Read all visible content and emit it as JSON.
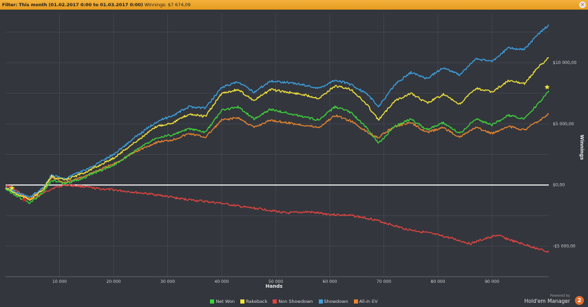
{
  "filter_bar": {
    "label": "Filter:",
    "range": "This month (01.02.2017 0:00 to 01.03.2017 0:00)",
    "winnings": "Winnings: $7 674,09",
    "close_icon": "close-icon"
  },
  "chart_data": {
    "type": "line",
    "title": "",
    "xlabel": "Hands",
    "ylabel": "Winnings",
    "xlim": [
      0,
      100500
    ],
    "ylim": [
      -7500,
      14000
    ],
    "x_ticks": [
      10000,
      20000,
      30000,
      40000,
      50000,
      60000,
      70000,
      80000,
      90000
    ],
    "x_tick_labels": [
      "10 000",
      "20 000",
      "30 000",
      "40 000",
      "50 000",
      "60 000",
      "70 000",
      "80 000",
      "90 000"
    ],
    "y_ticks": [
      -5000,
      0,
      5000,
      10000
    ],
    "y_tick_labels": [
      "-$5 000,00",
      "$0,00",
      "$5 000,00",
      "$10 000,00"
    ],
    "zero_line": true,
    "grid": true,
    "legend_position": "bottom",
    "series": [
      {
        "name": "Net Won",
        "color": "#3fd23a",
        "x": [
          0,
          2500,
          4500,
          7000,
          8500,
          11000,
          14000,
          16000,
          20000,
          24000,
          28000,
          31000,
          34000,
          37000,
          40000,
          43000,
          46000,
          49000,
          52000,
          55000,
          58000,
          61000,
          64000,
          67000,
          69000,
          72000,
          75000,
          78000,
          81000,
          84000,
          87000,
          90000,
          93000,
          96000,
          98500,
          100500
        ],
        "y": [
          -300,
          -1000,
          -1500,
          -600,
          400,
          100,
          500,
          900,
          1600,
          2800,
          3900,
          4100,
          4600,
          4300,
          6100,
          6400,
          5400,
          6200,
          5900,
          5600,
          5300,
          6400,
          5900,
          4600,
          3400,
          4800,
          5400,
          4500,
          5100,
          4200,
          5400,
          4900,
          5700,
          5400,
          6600,
          7700
        ]
      },
      {
        "name": "Rakeback",
        "color": "#f5e63a",
        "x": [
          0,
          2500,
          4500,
          7000,
          8500,
          11000,
          14000,
          16000,
          20000,
          24000,
          28000,
          31000,
          34000,
          37000,
          40000,
          43000,
          46000,
          49000,
          52000,
          55000,
          58000,
          61000,
          64000,
          67000,
          69000,
          72000,
          75000,
          78000,
          81000,
          84000,
          87000,
          90000,
          93000,
          96000,
          98500,
          100500
        ],
        "y": [
          -250,
          -850,
          -1200,
          -400,
          700,
          400,
          900,
          1300,
          2200,
          3500,
          4800,
          5100,
          5800,
          5600,
          7500,
          7800,
          6900,
          7800,
          7600,
          7400,
          7100,
          8100,
          7800,
          6500,
          5300,
          6900,
          7500,
          6700,
          7400,
          6600,
          7900,
          7600,
          8500,
          8300,
          9600,
          10400
        ]
      },
      {
        "name": "Non Showdown",
        "color": "#e0453f",
        "x": [
          0,
          1200,
          2500,
          3500,
          4500,
          6000,
          8500,
          11000,
          14000,
          17000,
          20000,
          24000,
          28000,
          32000,
          36000,
          40000,
          44000,
          48000,
          52000,
          56000,
          60000,
          64000,
          68000,
          71000,
          74000,
          78000,
          82000,
          86000,
          88000,
          91000,
          94000,
          97000,
          100500
        ],
        "y": [
          0,
          -250,
          -600,
          -1000,
          -1200,
          -900,
          -300,
          0,
          -100,
          -300,
          -400,
          -600,
          -800,
          -1100,
          -1300,
          -1500,
          -1800,
          -2000,
          -2300,
          -2200,
          -2400,
          -2500,
          -2800,
          -3200,
          -3600,
          -3900,
          -4300,
          -4800,
          -4500,
          -4100,
          -4600,
          -5000,
          -5500
        ]
      },
      {
        "name": "Showdown",
        "color": "#3da0e0",
        "x": [
          0,
          2500,
          4500,
          7000,
          8500,
          11000,
          14000,
          16000,
          20000,
          24000,
          28000,
          31000,
          34000,
          37000,
          40000,
          43000,
          46000,
          49000,
          52000,
          55000,
          58000,
          61000,
          64000,
          67000,
          69000,
          72000,
          75000,
          78000,
          81000,
          84000,
          87000,
          90000,
          93000,
          96000,
          98500,
          100500
        ],
        "y": [
          -200,
          -700,
          -1000,
          -200,
          800,
          500,
          1100,
          1500,
          2500,
          3900,
          5200,
          5700,
          6400,
          6300,
          8000,
          8400,
          7600,
          8500,
          8400,
          8200,
          7900,
          8600,
          8200,
          7400,
          6400,
          8200,
          9200,
          8700,
          9600,
          9000,
          10300,
          10100,
          11200,
          11100,
          12300,
          13100
        ]
      },
      {
        "name": "All-in EV",
        "color": "#e8852f",
        "x": [
          0,
          2500,
          4500,
          7000,
          8500,
          11000,
          14000,
          16000,
          20000,
          24000,
          28000,
          31000,
          34000,
          37000,
          40000,
          43000,
          46000,
          49000,
          52000,
          55000,
          58000,
          61000,
          64000,
          67000,
          69000,
          72000,
          75000,
          78000,
          81000,
          84000,
          87000,
          90000,
          93000,
          96000,
          98500,
          100500
        ],
        "y": [
          -200,
          -800,
          -1100,
          -300,
          600,
          200,
          600,
          1000,
          1700,
          2700,
          3500,
          3700,
          4200,
          3900,
          5300,
          5500,
          4700,
          5300,
          5100,
          4900,
          4700,
          5700,
          5200,
          4300,
          3900,
          4800,
          5100,
          4300,
          4700,
          3900,
          4700,
          4200,
          4800,
          4500,
          5200,
          5800
        ]
      }
    ],
    "markers": [
      {
        "series": "Non Showdown",
        "x": 3500,
        "y": -1200,
        "shape": "star",
        "color": "#e0201c"
      },
      {
        "series": "Rakeback",
        "x": 100200,
        "y": 8000,
        "shape": "star",
        "color": "#f5e63a"
      },
      {
        "series": "Rakeback",
        "x": 1200,
        "y": -250,
        "shape": "star",
        "color": "#f5e63a"
      }
    ]
  },
  "legend": [
    {
      "label": "Net Won",
      "color": "#3fd23a"
    },
    {
      "label": "Rakeback",
      "color": "#f5e63a"
    },
    {
      "label": "Non Showdown",
      "color": "#e0453f"
    },
    {
      "label": "Showdown",
      "color": "#3da0e0"
    },
    {
      "label": "All-in EV",
      "color": "#e8852f"
    }
  ],
  "branding": {
    "powered_by": "Powered by",
    "product": "Hold'em Manager",
    "logo_text": "2"
  }
}
